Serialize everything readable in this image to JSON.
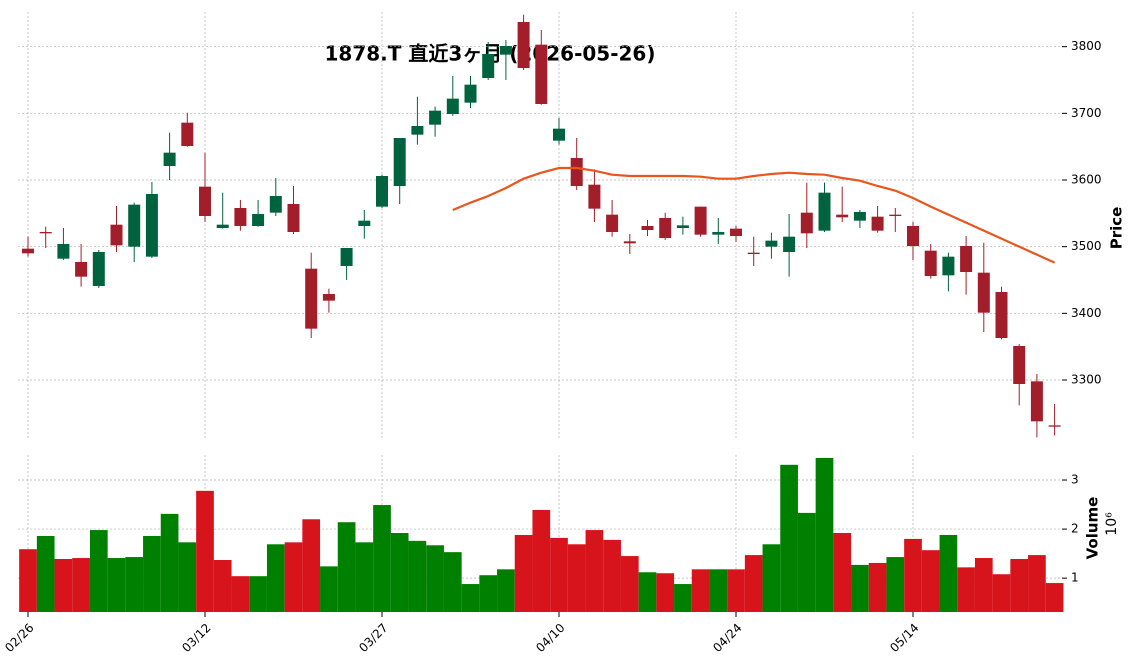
{
  "chart_data": [
    {
      "type": "candlestick",
      "title": "1878.T 直近3ヶ月 (2026-05-26)",
      "categories": [
        "02/26",
        null,
        null,
        null,
        null,
        null,
        null,
        null,
        null,
        null,
        "03/12",
        null,
        null,
        null,
        null,
        null,
        null,
        null,
        null,
        null,
        "03/27",
        null,
        null,
        null,
        null,
        null,
        null,
        null,
        null,
        null,
        "04/10",
        null,
        null,
        null,
        null,
        null,
        null,
        null,
        null,
        null,
        "04/24",
        null,
        null,
        null,
        null,
        null,
        null,
        null,
        null,
        null,
        "05/14",
        null,
        null,
        null,
        null,
        null,
        null,
        null,
        null
      ],
      "open": [
        3497,
        3522,
        3482,
        3477,
        3441,
        3533,
        3500,
        3485,
        3621,
        3686,
        3590,
        3528,
        3558,
        3531,
        3551,
        3564,
        3467,
        3429,
        3471,
        3531,
        3560,
        3591,
        3668,
        3683,
        3699,
        3716,
        3753,
        3788,
        3837,
        3803,
        3659,
        3633,
        3593,
        3548,
        3508,
        3531,
        3543,
        3528,
        3560,
        3518,
        3527,
        3491,
        3500,
        3492,
        3551,
        3524,
        3548,
        3539,
        3545,
        3548,
        3531,
        3494,
        3457,
        3501,
        3461,
        3432,
        3351,
        3298,
        3232
      ],
      "high": [
        3515,
        3530,
        3528,
        3504,
        3495,
        3561,
        3566,
        3597,
        3671,
        3701,
        3641,
        3581,
        3570,
        3570,
        3603,
        3591,
        3491,
        3437,
        3498,
        3555,
        3608,
        3663,
        3725,
        3710,
        3756,
        3756,
        3807,
        3810,
        3848,
        3825,
        3693,
        3663,
        3616,
        3570,
        3519,
        3540,
        3551,
        3545,
        3560,
        3543,
        3531,
        3515,
        3521,
        3549,
        3596,
        3596,
        3590,
        3555,
        3561,
        3558,
        3537,
        3504,
        3491,
        3516,
        3506,
        3440,
        3354,
        3309,
        3264
      ],
      "low": [
        3485,
        3498,
        3480,
        3440,
        3438,
        3492,
        3477,
        3483,
        3600,
        3650,
        3537,
        3527,
        3524,
        3530,
        3546,
        3519,
        3363,
        3401,
        3450,
        3512,
        3558,
        3564,
        3653,
        3665,
        3696,
        3708,
        3750,
        3750,
        3765,
        3713,
        3653,
        3585,
        3537,
        3515,
        3489,
        3516,
        3510,
        3518,
        3515,
        3504,
        3507,
        3471,
        3482,
        3455,
        3498,
        3522,
        3537,
        3528,
        3521,
        3522,
        3480,
        3452,
        3433,
        3428,
        3372,
        3361,
        3262,
        3214,
        3217
      ],
      "close": [
        3490,
        3520,
        3504,
        3455,
        3492,
        3502,
        3563,
        3579,
        3641,
        3651,
        3546,
        3533,
        3531,
        3549,
        3576,
        3522,
        3377,
        3419,
        3498,
        3539,
        3606,
        3663,
        3681,
        3704,
        3722,
        3743,
        3789,
        3801,
        3768,
        3714,
        3677,
        3591,
        3557,
        3522,
        3505,
        3525,
        3513,
        3532,
        3518,
        3522,
        3516,
        3489,
        3509,
        3515,
        3520,
        3581,
        3544,
        3552,
        3524,
        3546,
        3501,
        3456,
        3485,
        3462,
        3401,
        3363,
        3294,
        3238,
        3230
      ],
      "up_color": "#006340",
      "down_color": "#a31e2b",
      "line": {
        "color": "#e8561c",
        "values": [
          null,
          null,
          null,
          null,
          null,
          null,
          null,
          null,
          null,
          null,
          null,
          null,
          null,
          null,
          null,
          null,
          null,
          null,
          null,
          null,
          null,
          null,
          null,
          null,
          3555,
          3566,
          3576,
          3588,
          3602,
          3611,
          3618,
          3618,
          3614,
          3608,
          3606,
          3606,
          3606,
          3606,
          3605,
          3602,
          3602,
          3606,
          3609,
          3611,
          3609,
          3608,
          3603,
          3599,
          3591,
          3584,
          3573,
          3560,
          3548,
          3536,
          3524,
          3512,
          3500,
          3488,
          3476
        ]
      },
      "ylabel": "Price",
      "ylim": [
        3210,
        3852
      ],
      "yticks": [
        3300,
        3400,
        3500,
        3600,
        3700,
        3800
      ],
      "grid": true
    },
    {
      "type": "bar",
      "ylabel": "Volume",
      "y_offset_label": "10⁶",
      "values": [
        1.59,
        1.86,
        1.39,
        1.41,
        1.98,
        1.41,
        1.43,
        1.86,
        2.31,
        1.73,
        2.78,
        1.37,
        1.04,
        1.04,
        1.69,
        1.73,
        2.2,
        1.24,
        2.14,
        1.73,
        2.49,
        1.92,
        1.76,
        1.67,
        1.53,
        0.88,
        1.06,
        1.18,
        1.88,
        2.39,
        1.82,
        1.69,
        1.98,
        1.78,
        1.45,
        1.12,
        1.1,
        0.88,
        1.18,
        1.18,
        1.18,
        1.47,
        1.69,
        3.31,
        2.33,
        3.45,
        1.92,
        1.27,
        1.31,
        1.43,
        1.8,
        1.57,
        1.88,
        1.22,
        1.41,
        1.08,
        1.39,
        1.47,
        0.9
      ],
      "up_color": "#008000",
      "down_color": "#d7131c",
      "ylim": [
        0.31,
        3.51
      ],
      "yticks": [
        1,
        2,
        3
      ],
      "grid": true
    }
  ]
}
